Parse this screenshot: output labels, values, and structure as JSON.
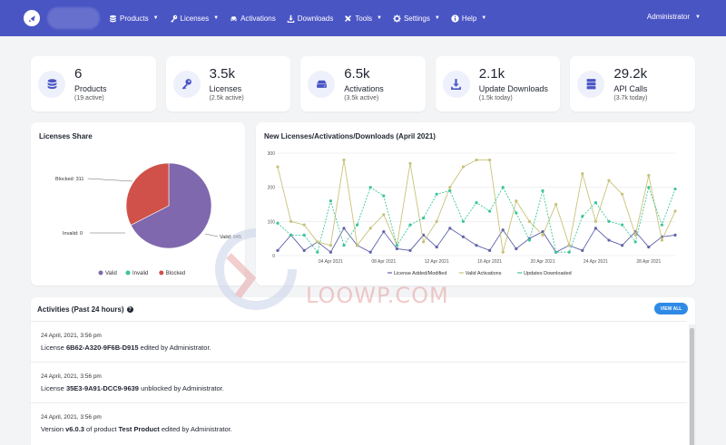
{
  "nav": {
    "menu": [
      {
        "label": "Products",
        "icon": "database-icon",
        "caret": true
      },
      {
        "label": "Licenses",
        "icon": "key-icon",
        "caret": true
      },
      {
        "label": "Activations",
        "icon": "car-icon",
        "caret": false
      },
      {
        "label": "Downloads",
        "icon": "download-icon",
        "caret": false
      },
      {
        "label": "Tools",
        "icon": "tools-icon",
        "caret": true
      },
      {
        "label": "Settings",
        "icon": "gear-icon",
        "caret": true
      },
      {
        "label": "Help",
        "icon": "info-icon",
        "caret": true
      }
    ],
    "user": "Administrator"
  },
  "stats": [
    {
      "value": "6",
      "label": "Products",
      "sub": "(19 active)",
      "icon": "database-icon"
    },
    {
      "value": "3.5k",
      "label": "Licenses",
      "sub": "(2.5k active)",
      "icon": "key-icon"
    },
    {
      "value": "6.5k",
      "label": "Activations",
      "sub": "(3.5k active)",
      "icon": "drive-icon"
    },
    {
      "value": "2.1k",
      "label": "Update Downloads",
      "sub": "(1.5k today)",
      "icon": "download-icon"
    },
    {
      "value": "29.2k",
      "label": "API Calls",
      "sub": "(3.7k today)",
      "icon": "server-icon"
    }
  ],
  "licenses_share": {
    "title": "Licenses Share"
  },
  "timeline": {
    "title": "New Licenses/Activations/Downloads (April 2021)"
  },
  "chart_data": [
    {
      "type": "pie",
      "title": "Licenses Share",
      "slices": [
        {
          "name": "Valid",
          "value": 645,
          "label": "Valid: 645",
          "color": "#7f68ad"
        },
        {
          "name": "Invalid",
          "value": 0,
          "label": "Invalid: 0",
          "color": "#3bc59a"
        },
        {
          "name": "Blocked",
          "value": 311,
          "label": "Blocked: 311",
          "color": "#cf5149"
        }
      ],
      "legend_position": "bottom"
    },
    {
      "type": "line",
      "title": "New Licenses/Activations/Downloads (April 2021)",
      "x": [
        "31 Mar 2021",
        "01 Apr 2021",
        "02 Apr 2021",
        "03 Apr 2021",
        "04 Apr 2021",
        "05 Apr 2021",
        "06 Apr 2021",
        "07 Apr 2021",
        "08 Apr 2021",
        "09 Apr 2021",
        "10 Apr 2021",
        "11 Apr 2021",
        "12 Apr 2021",
        "13 Apr 2021",
        "14 Apr 2021",
        "15 Apr 2021",
        "16 Apr 2021",
        "17 Apr 2021",
        "18 Apr 2021",
        "19 Apr 2021",
        "20 Apr 2021",
        "21 Apr 2021",
        "22 Apr 2021",
        "23 Apr 2021",
        "24 Apr 2021",
        "25 Apr 2021",
        "26 Apr 2021",
        "27 Apr 2021",
        "28 Apr 2021",
        "29 Apr 2021",
        "30 Apr 2021"
      ],
      "x_tick_labels": [
        "04 Apr 2021",
        "08 Apr 2021",
        "12 Apr 2021",
        "16 Apr 2021",
        "20 Apr 2021",
        "24 Apr 2021",
        "28 Apr 2021"
      ],
      "ylim": [
        0,
        300
      ],
      "y_ticks": [
        0,
        100,
        200,
        300
      ],
      "grid": true,
      "legend_position": "bottom",
      "series": [
        {
          "name": "License Added/Modified",
          "color": "#5f63a8",
          "values": [
            15,
            60,
            15,
            40,
            10,
            80,
            30,
            10,
            70,
            20,
            15,
            60,
            25,
            80,
            55,
            30,
            15,
            75,
            20,
            50,
            70,
            10,
            30,
            15,
            80,
            45,
            30,
            70,
            25,
            55,
            60
          ]
        },
        {
          "name": "Valid Activations",
          "color": "#c8c27a",
          "values": [
            260,
            100,
            90,
            40,
            30,
            280,
            30,
            80,
            120,
            30,
            270,
            40,
            100,
            200,
            260,
            280,
            280,
            10,
            160,
            100,
            60,
            150,
            30,
            240,
            100,
            220,
            180,
            60,
            235,
            45,
            130
          ]
        },
        {
          "name": "Updates Downloaded",
          "color": "#3bc59a",
          "values": [
            95,
            60,
            60,
            10,
            160,
            30,
            90,
            200,
            175,
            30,
            90,
            110,
            180,
            190,
            100,
            155,
            130,
            200,
            125,
            45,
            190,
            10,
            10,
            115,
            155,
            100,
            90,
            40,
            200,
            90,
            195
          ]
        }
      ]
    }
  ],
  "activities": {
    "title": "Activities (Past 24 hours)",
    "view_all": "VIEW ALL",
    "items": [
      {
        "time": "24 April, 2021, 3:56 pm",
        "pre": "License ",
        "bold": "6B62-A320-9F6B-D915",
        "post": " edited by Administrator."
      },
      {
        "time": "24 April, 2021, 3:56 pm",
        "pre": "License ",
        "bold": "35E3-9A91-DCC9-9639",
        "post": " unblocked by Administrator."
      },
      {
        "time": "24 April, 2021, 3:56 pm",
        "pre": "Version ",
        "bold": "v6.0.3",
        "post": " of product ",
        "bold2": "Test Product",
        "post2": " edited by Administrator."
      }
    ]
  },
  "watermark": {
    "text": "LOOWP.COM"
  }
}
